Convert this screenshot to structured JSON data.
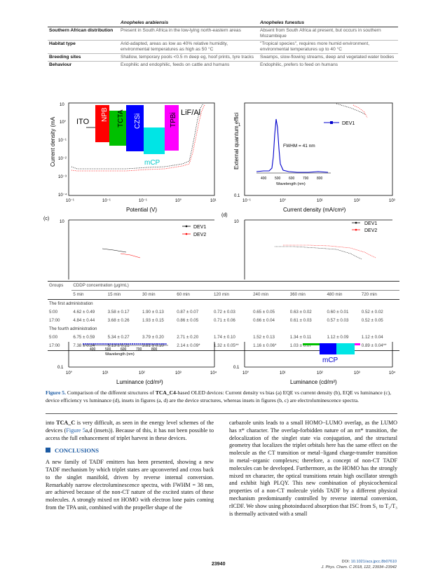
{
  "species_table": {
    "col1": "Anopheles arabiensis",
    "col2": "Anopheles funestus",
    "rows": [
      {
        "label": "Southern African distribution",
        "a": "Present in South Africa in the low-lying north-eastern areas",
        "b": "Absent from South Africa at present, but occurs in southern Mozambique"
      },
      {
        "label": "Habitat type",
        "a": "Arid-adapted, areas as low as 40% relative humidity, environmental temperatures as high as 50 °C",
        "b": "\"Tropical species\", requires more humid environment, environmental temperatures up to 40 °C"
      },
      {
        "label": "Breeding sites",
        "a": "Shallow, temporary pools <0.5 m deep eg, hoof prints, tyre tracks",
        "b": "Swamps, slow-flowing streams, deep and vegetated water bodies"
      },
      {
        "label": "Behaviour",
        "a": "Exophilic and endophilic, feeds on cattle and humans",
        "b": "Endophilic, prefers to feed on humans"
      }
    ]
  },
  "figure": {
    "panel_a": {
      "ylabel": "Current density (mA",
      "xlabel": "Potential (V)",
      "yticks": [
        "10",
        "10°",
        "10⁻¹",
        "10⁻²",
        "10⁻³",
        "10⁻⁴"
      ],
      "xticks": [
        "10⁻¹",
        "10⁻¹",
        "10⁻¹",
        "10°",
        "10¹"
      ],
      "layers": [
        "ITO",
        "NPB",
        "TCTA",
        "CZSi",
        "TPBi",
        "LiF/Al"
      ],
      "layer_colors": [
        "#ff0000",
        "#00c000",
        "#0000ff",
        "#00e5e5",
        "#ff00ff"
      ],
      "mcp_label": "mCP"
    },
    "panel_b": {
      "ylabel": "External quantum effici",
      "xlabel": "Current density (mA/cm²)",
      "yticks": [
        "1",
        "0.1"
      ],
      "xticks": [
        "10⁻¹",
        "10°",
        "10¹",
        "10²",
        "10³"
      ],
      "legend": "DEV1",
      "inset_annotation": "FWHM = 41 nm",
      "inset_xlabel": "Wavelength (nm)",
      "inset_xticks": [
        "400",
        "500",
        "600",
        "700",
        "800"
      ]
    },
    "panel_c": {
      "label": "(c)",
      "ytick": "10",
      "legend": [
        "DEV1",
        "DEV2"
      ],
      "xlabel": "Luminance (cd/m²)",
      "xticks": [
        "10°",
        "10¹",
        "10²",
        "10³",
        "10⁴"
      ],
      "ytick_bottom": "0.1",
      "inset_xlabel": "Wavelength (nm)",
      "inset_xticks": [
        "400",
        "500",
        "600",
        "700",
        "800"
      ]
    },
    "panel_d": {
      "label": "(d)",
      "ytick": "10",
      "legend": [
        "DEV1",
        "DEV2"
      ],
      "xlabel": "Luminance (cd/m²)",
      "xticks": [
        "10°",
        "10¹",
        "10²",
        "10³",
        "10⁴"
      ],
      "ytick_bottom": "0.1",
      "mcp_label": "mCP"
    }
  },
  "cddp_table": {
    "groups_label": "Groups",
    "header": "CDDP concentration (μg/mL)",
    "columns": [
      "5 min",
      "15 min",
      "30 min",
      "60 min",
      "120 min",
      "240 min",
      "360 min",
      "480 min",
      "720 min"
    ],
    "sections": [
      {
        "title": "The first administration",
        "rows": [
          {
            "time": "5:00",
            "vals": [
              "4.62 ± 0.49",
              "3.58 ± 0.17",
              "1.90 ± 0.13",
              "0.87 ± 0.07",
              "0.72 ± 0.03",
              "0.65 ± 0.05",
              "0.63 ± 0.02",
              "0.60 ± 0.01",
              "0.52 ± 0.02"
            ]
          },
          {
            "time": "17:00",
            "vals": [
              "4.84 ± 0.44",
              "3.68 ± 0.26",
              "1.93 ± 0.15",
              "0.86 ± 0.05",
              "0.71 ± 0.06",
              "0.66 ± 0.04",
              "0.61 ± 0.03",
              "0.57 ± 0.03",
              "0.52 ± 0.05"
            ]
          }
        ]
      },
      {
        "title": "The fourth administration",
        "rows": [
          {
            "time": "5:00",
            "vals": [
              "6.75 ± 0.59",
              "5.34 ± 0.27",
              "3.79 ± 0.20",
              "2.71 ± 0.20",
              "1.74 ± 0.10",
              "1.52 ± 0.13",
              "1.34 ± 0.11",
              "1.12 ± 0.09",
              "1.12 ± 0.04"
            ]
          },
          {
            "time": "17:00",
            "vals": [
              "7.38 ± 0.24",
              "5.13 ± 0.21",
              "3.81 ± 0.10",
              "2.14 ± 0.09*",
              "1.32 ± 0.05**",
              "1.16 ± 0.06*",
              "1.03 ± 0.07*",
              "0.97 ± 0.06",
              "0.89 ± 0.04**"
            ]
          }
        ]
      }
    ]
  },
  "caption": {
    "lead": "Figure 5.",
    "text_a": " Comparison of the different structures of ",
    "compound": "TCA_C4",
    "text_b": "-based OLED devices: Current density vs bias (a) EQE vs current density (b), EQE vs luminance (c), device efficiency vs luminance (d), insets in figures (a, d) are the device structures, whereas insets in figures (b, c) are electroluminescence spectra."
  },
  "left_column": {
    "p1_a": "into ",
    "p1_b": "TCA_C",
    "p1_c": " is very difficult, as seen in the energy level schemes of the devices (",
    "p1_link": "Figure 5",
    "p1_d": "a,d (insets)). Because of this, it has not been possible to access the full enhancement of triplet harvest in these devices.",
    "heading": "CONCLUSIONS",
    "p2": "A new family of TADF emitters has been presented, showing a new TADF mechanism by which triplet states are upconverted and cross back to the singlet manifold, driven by reverse internal conversion. Remarkably narrow electroluminescence spectra, with FWHM = 38 nm, are achieved because of the non-CT nature of the excited states of these molecules. A strongly mixed nπ HOMO with electron lone pairs coming from the TPA unit, combined with the propeller shape of the"
  },
  "right_column": {
    "p1": "carbazole units leads to a small HOMO−LUMO overlap, as the LUMO has π* character. The overlap-forbidden nature of an nπ* transition, the delocalization of the singlet state via conjugation, and the structural geometry that localizes the triplet orbitals here has the same effect on the molecule as the CT transition or metal−ligand charge-transfer transition in metal−organic complexes; therefore, a concept of non-CT TADF molecules can be developed. Furthermore, as the HOMO has the strongly mixed nπ character, the optical transitions retain high oscillator strength and exhibit high PLQY. This new combination of physicochemical properties of a non-CT molecule yields TADF by a different physical mechanism predominantly controlled by reverse internal conversion, rICDF. We show using photoinduced absorption that ISC from S₁ to T₂/T₃ is thermally activated with a small"
  },
  "footer": {
    "page_number": "23940",
    "doi_label": "DOI: ",
    "doi_link": "10.1021/acs.jpcc.8b07610",
    "journal": "J. Phys. Chem. C 2018, 122, 23934−23942"
  }
}
